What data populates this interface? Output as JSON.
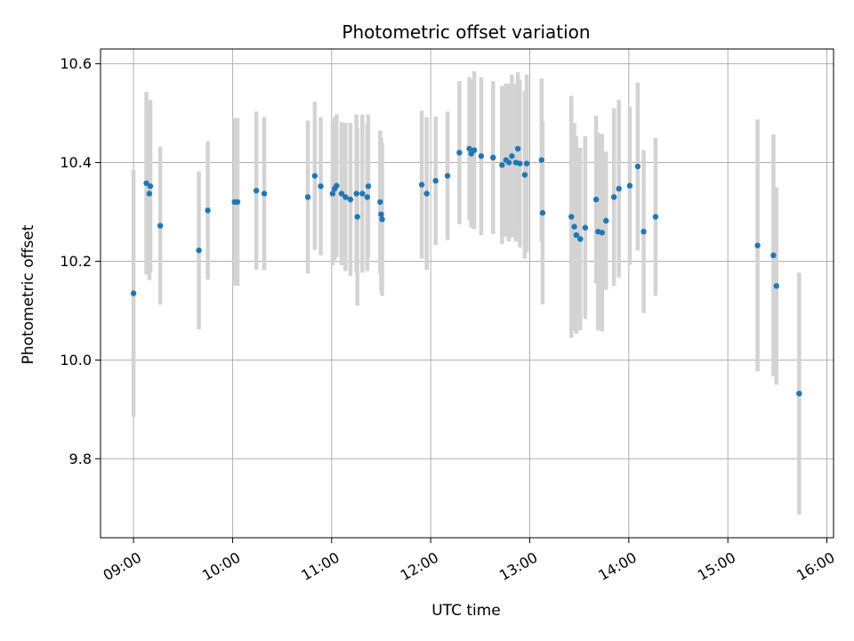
{
  "chart_data": {
    "type": "scatter",
    "title": "Photometric offset variation",
    "xlabel": "UTC time",
    "ylabel": "Photometric offset",
    "x_unit": "hours UTC",
    "xlim": [
      8.667,
      16.067
    ],
    "ylim": [
      9.64,
      10.63
    ],
    "x_ticks": [
      9,
      10,
      11,
      12,
      13,
      14,
      15,
      16
    ],
    "x_tick_labels": [
      "09:00",
      "10:00",
      "11:00",
      "12:00",
      "13:00",
      "14:00",
      "15:00",
      "16:00"
    ],
    "y_ticks": [
      9.8,
      10.0,
      10.2,
      10.4,
      10.6
    ],
    "y_tick_labels": [
      "9.8",
      "10.0",
      "10.2",
      "10.4",
      "10.6"
    ],
    "grid": true,
    "marker_color": "#1f77b4",
    "errorbar_color": "#d3d3d3",
    "series": [
      {
        "x": [
          9.0,
          9.13,
          9.17,
          9.16,
          9.27,
          9.66,
          9.75,
          10.02,
          10.05,
          10.24,
          10.32,
          10.76,
          10.83,
          10.89,
          11.01,
          11.03,
          11.05,
          11.1,
          11.14,
          11.19,
          11.25,
          11.26,
          11.31,
          11.36,
          11.37,
          11.49,
          11.5,
          11.51,
          11.91,
          11.96,
          12.05,
          12.17,
          12.29,
          12.39,
          12.41,
          12.44,
          12.51,
          12.63,
          12.72,
          12.76,
          12.79,
          12.82,
          12.86,
          12.88,
          12.9,
          12.95,
          12.97,
          13.12,
          13.13,
          13.42,
          13.45,
          13.47,
          13.51,
          13.56,
          13.67,
          13.69,
          13.73,
          13.77,
          13.85,
          13.9,
          14.01,
          14.09,
          14.15,
          14.27,
          15.3,
          15.46,
          15.49,
          15.72
        ],
        "y": [
          10.135,
          10.358,
          10.352,
          10.337,
          10.272,
          10.222,
          10.303,
          10.32,
          10.32,
          10.343,
          10.337,
          10.33,
          10.373,
          10.352,
          10.337,
          10.347,
          10.353,
          10.337,
          10.33,
          10.325,
          10.337,
          10.29,
          10.337,
          10.33,
          10.352,
          10.32,
          10.295,
          10.285,
          10.355,
          10.337,
          10.363,
          10.373,
          10.42,
          10.428,
          10.418,
          10.425,
          10.413,
          10.41,
          10.395,
          10.405,
          10.4,
          10.413,
          10.4,
          10.428,
          10.398,
          10.375,
          10.398,
          10.405,
          10.298,
          10.29,
          10.27,
          10.253,
          10.245,
          10.268,
          10.325,
          10.26,
          10.258,
          10.282,
          10.33,
          10.347,
          10.353,
          10.392,
          10.26,
          10.29,
          10.232,
          10.212,
          10.15,
          9.932
        ],
        "yerr": [
          0.25,
          0.185,
          0.175,
          0.175,
          0.16,
          0.16,
          0.14,
          0.17,
          0.17,
          0.16,
          0.155,
          0.155,
          0.15,
          0.14,
          0.145,
          0.145,
          0.145,
          0.145,
          0.15,
          0.155,
          0.16,
          0.18,
          0.16,
          0.15,
          0.145,
          0.145,
          0.155,
          0.155,
          0.15,
          0.155,
          0.13,
          0.13,
          0.145,
          0.145,
          0.15,
          0.16,
          0.16,
          0.155,
          0.16,
          0.155,
          0.16,
          0.165,
          0.16,
          0.155,
          0.17,
          0.17,
          0.18,
          0.165,
          0.185,
          0.245,
          0.21,
          0.2,
          0.185,
          0.185,
          0.17,
          0.2,
          0.2,
          0.14,
          0.18,
          0.18,
          0.16,
          0.17,
          0.165,
          0.16,
          0.255,
          0.245,
          0.2,
          0.245
        ]
      }
    ]
  }
}
